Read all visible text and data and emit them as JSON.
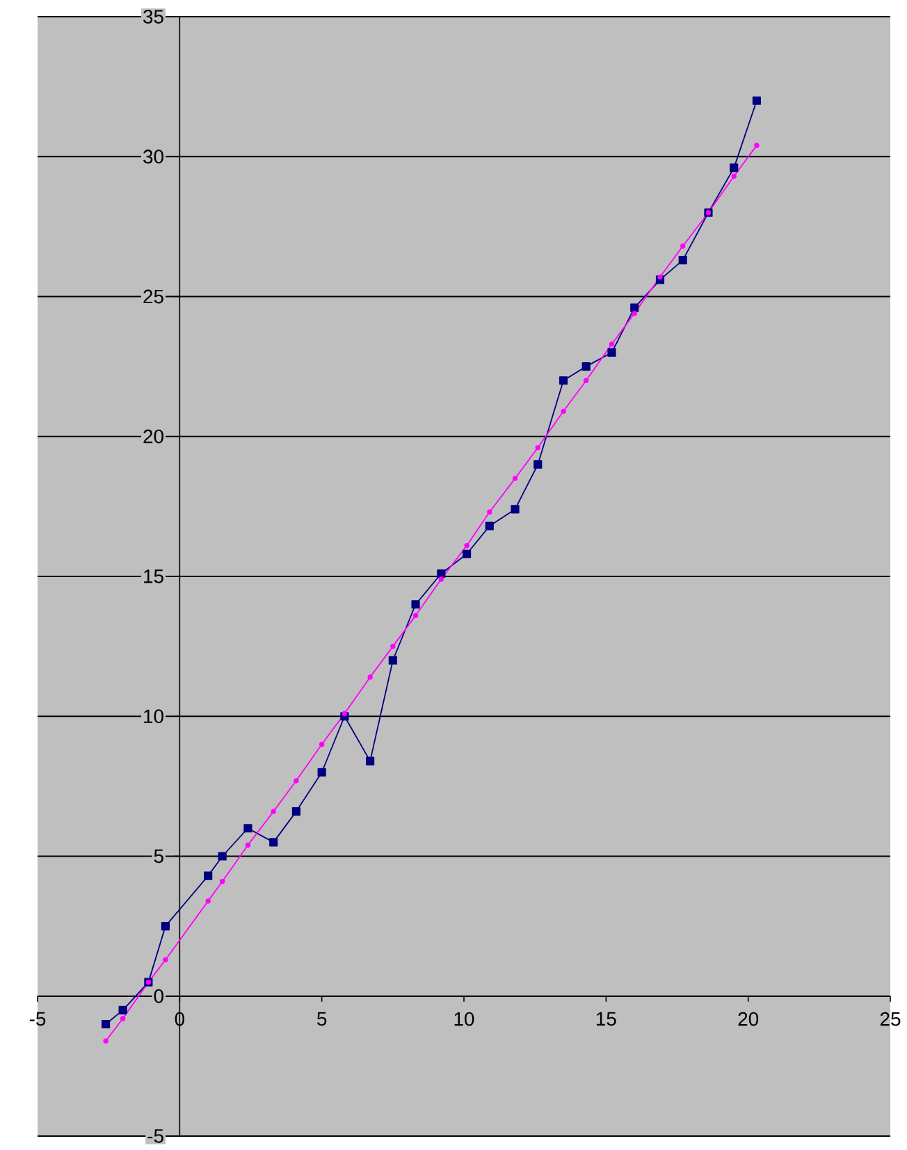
{
  "chart_data": {
    "type": "line",
    "xlim": [
      -5,
      25
    ],
    "ylim": [
      -5,
      35
    ],
    "xticks": [
      -5,
      0,
      5,
      10,
      15,
      20,
      25
    ],
    "yticks": [
      -5,
      0,
      5,
      10,
      15,
      20,
      25,
      30,
      35
    ],
    "grid": "y",
    "x": [
      -2.6,
      -2.0,
      -1.1,
      -0.5,
      1.0,
      1.5,
      2.4,
      3.3,
      4.1,
      5.0,
      5.8,
      6.7,
      7.5,
      8.3,
      9.2,
      10.1,
      10.9,
      11.8,
      12.6,
      13.5,
      14.3,
      15.2,
      16.0,
      16.9,
      17.7,
      18.6,
      19.5,
      20.3
    ],
    "series": [
      {
        "color": "#000080",
        "marker": "square",
        "values": [
          -1.0,
          -0.5,
          0.5,
          2.5,
          4.3,
          5.0,
          6.0,
          5.5,
          6.6,
          8.0,
          10.0,
          8.4,
          12.0,
          14.0,
          15.1,
          15.8,
          16.8,
          17.4,
          19.0,
          22.0,
          22.5,
          23.0,
          24.6,
          25.6,
          26.3,
          28.0,
          29.6,
          32.0
        ]
      },
      {
        "color": "#ff00ff",
        "marker": "circle",
        "values": [
          -1.6,
          -0.8,
          0.5,
          1.3,
          3.4,
          4.1,
          5.4,
          6.6,
          7.7,
          9.0,
          10.1,
          11.4,
          12.5,
          13.6,
          14.9,
          16.1,
          17.3,
          18.5,
          19.6,
          20.9,
          22.0,
          23.3,
          24.4,
          25.7,
          26.8,
          28.0,
          29.3,
          30.4
        ]
      }
    ]
  }
}
